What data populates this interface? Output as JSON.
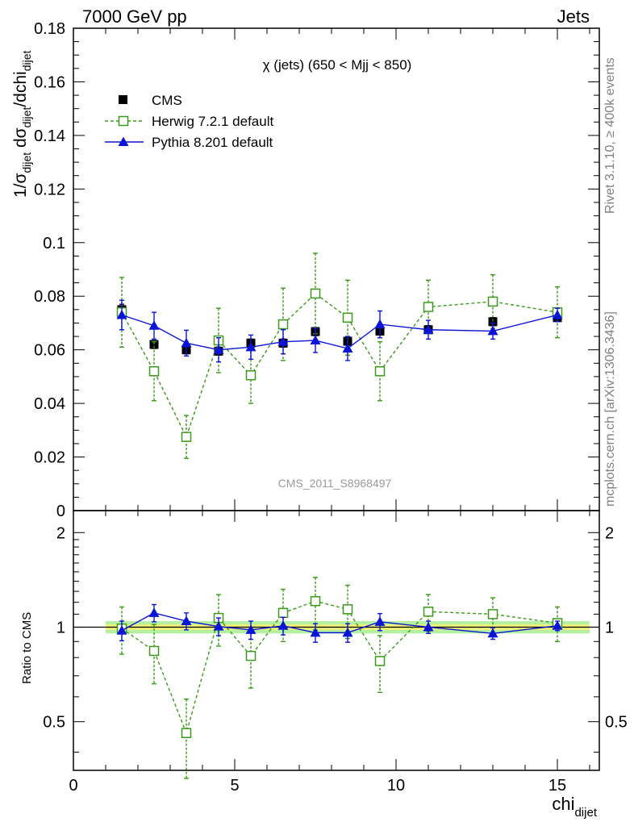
{
  "header": {
    "left": "7000 GeV pp",
    "right": "Jets"
  },
  "side_labels": {
    "rivet": "Rivet 3.1.10, ≥ 400k events",
    "mcplots": "mcplots.cern.ch [arXiv:1306.3436]"
  },
  "watermark": "CMS_2011_S8968497",
  "chart_data": [
    {
      "type": "scatter",
      "panel": "main",
      "title": "χ (jets) (650 < Mjj <  850)",
      "ylabel_parts": [
        "1/σ",
        "dijet",
        " dσ",
        "dijet",
        "/dchi",
        "dijet"
      ],
      "ylim": [
        0,
        0.18
      ],
      "yticks": [
        0,
        0.02,
        0.04,
        0.06,
        0.08,
        0.1,
        0.12,
        0.14,
        0.16,
        0.18
      ],
      "ytick_labels": [
        "0",
        "0.02",
        "0.04",
        "0.06",
        "0.08",
        "0.1",
        "0.12",
        "0.14",
        "0.16",
        "0.18"
      ],
      "xlim": [
        0,
        16.3
      ],
      "legend_position": "top-left",
      "series": [
        {
          "name": "CMS",
          "style": "data",
          "color": "#000000",
          "marker": "filled-square",
          "x": [
            1.5,
            2.5,
            3.5,
            4.5,
            5.5,
            6.5,
            7.5,
            8.5,
            9.5,
            11,
            13,
            15
          ],
          "y": [
            0.075,
            0.062,
            0.06,
            0.0595,
            0.0625,
            0.0625,
            0.0668,
            0.0632,
            0.067,
            0.0675,
            0.0705,
            0.072
          ],
          "err": [
            0.002,
            0.0015,
            0.0015,
            0.0015,
            0.0015,
            0.0015,
            0.0015,
            0.0015,
            0.0015,
            0.0015,
            0.0015,
            0.0015
          ],
          "xerr": [
            0.5,
            0.5,
            0.5,
            0.5,
            0.5,
            0.5,
            0.5,
            0.5,
            0.5,
            1,
            1,
            1
          ]
        },
        {
          "name": "Herwig 7.2.1 default",
          "style": "dashed",
          "color": "#3a9a1a",
          "marker": "open-square",
          "x": [
            1.5,
            2.5,
            3.5,
            4.5,
            5.5,
            6.5,
            7.5,
            8.5,
            9.5,
            11,
            13,
            15
          ],
          "y": [
            0.074,
            0.052,
            0.0275,
            0.0635,
            0.0505,
            0.0695,
            0.081,
            0.072,
            0.052,
            0.076,
            0.078,
            0.074
          ],
          "err": [
            0.013,
            0.011,
            0.008,
            0.012,
            0.0105,
            0.0135,
            0.015,
            0.014,
            0.011,
            0.01,
            0.01,
            0.0095
          ]
        },
        {
          "name": "Pythia 8.201 default",
          "style": "solid",
          "color": "#0a14d6",
          "marker": "filled-triangle",
          "x": [
            1.5,
            2.5,
            3.5,
            4.5,
            5.5,
            6.5,
            7.5,
            8.5,
            9.5,
            11,
            13,
            15
          ],
          "y": [
            0.073,
            0.069,
            0.0625,
            0.06,
            0.061,
            0.063,
            0.0635,
            0.0605,
            0.0695,
            0.0675,
            0.067,
            0.073
          ],
          "err": [
            0.0055,
            0.005,
            0.0048,
            0.0045,
            0.0045,
            0.0045,
            0.0045,
            0.0045,
            0.005,
            0.0035,
            0.003,
            0.0025
          ]
        }
      ]
    },
    {
      "type": "scatter",
      "panel": "ratio",
      "ylabel": "Ratio to CMS",
      "xlabel": "chi",
      "xlabel_sub": "dijet",
      "ylim": [
        0.35,
        2.35
      ],
      "yticks": [
        0.5,
        1,
        2
      ],
      "ytick_labels": [
        "0.5",
        "1",
        "2"
      ],
      "xlim": [
        0,
        16.3
      ],
      "xticks": [
        0,
        5,
        10,
        15
      ],
      "xtick_labels": [
        "0",
        "5",
        "10",
        "15"
      ],
      "band": {
        "x_range": [
          1,
          16
        ],
        "inner": [
          0.98,
          1.02
        ],
        "outer": [
          0.955,
          1.045
        ],
        "inner_color": "#f0f07a",
        "outer_color": "#b4f0a0"
      },
      "series": [
        {
          "name": "Herwig 7.2.1 default",
          "color": "#3a9a1a",
          "marker": "open-square",
          "x": [
            1.5,
            2.5,
            3.5,
            4.5,
            5.5,
            6.5,
            7.5,
            8.5,
            9.5,
            11,
            13,
            15
          ],
          "y": [
            0.99,
            0.84,
            0.46,
            1.07,
            0.81,
            1.11,
            1.21,
            1.14,
            0.78,
            1.12,
            1.1,
            1.03
          ],
          "err": [
            0.17,
            0.18,
            0.13,
            0.2,
            0.17,
            0.21,
            0.23,
            0.22,
            0.16,
            0.15,
            0.14,
            0.13
          ]
        },
        {
          "name": "Pythia 8.201 default",
          "color": "#0a14d6",
          "marker": "filled-triangle",
          "x": [
            1.5,
            2.5,
            3.5,
            4.5,
            5.5,
            6.5,
            7.5,
            8.5,
            9.5,
            11,
            13,
            15
          ],
          "y": [
            0.975,
            1.11,
            1.045,
            1.005,
            0.98,
            1.01,
            0.96,
            0.96,
            1.04,
            1.0,
            0.955,
            1.01
          ],
          "err": [
            0.07,
            0.07,
            0.065,
            0.065,
            0.065,
            0.065,
            0.065,
            0.065,
            0.065,
            0.045,
            0.04,
            0.035
          ]
        }
      ]
    }
  ]
}
